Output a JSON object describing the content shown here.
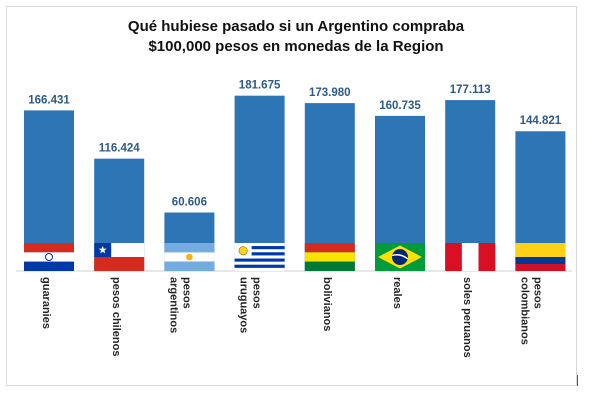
{
  "chart_data": {
    "type": "bar",
    "title_lines": [
      "Qué hubiese pasado si un Argentino compraba",
      "$100,000 pesos en monedas de la Region"
    ],
    "categories": [
      "guaranies",
      "pesos chilenos",
      "pesos argentinos",
      "pesos uruguayos",
      "bolivianos",
      "reales",
      "soles peruanos",
      "pesos colombianos"
    ],
    "category_label_lines": [
      [
        "guaranies"
      ],
      [
        "pesos chilenos"
      ],
      [
        "pesos",
        "argentinos"
      ],
      [
        "pesos",
        "uruguayos"
      ],
      [
        "bolivianos"
      ],
      [
        "reales"
      ],
      [
        "soles peruanos"
      ],
      [
        "pesos",
        "colombianos"
      ]
    ],
    "values": [
      166431,
      116424,
      60606,
      181675,
      173980,
      160735,
      177113,
      144821
    ],
    "value_labels": [
      "166.431",
      "116.424",
      "60.606",
      "181.675",
      "173.980",
      "160.735",
      "177.113",
      "144.821"
    ],
    "flags": [
      "paraguay",
      "chile",
      "argentina",
      "uruguay",
      "bolivia",
      "brazil",
      "peru",
      "colombia"
    ],
    "ylim": [
      0,
      200000
    ],
    "bar_color": "#2e75b6",
    "grid": false,
    "legend": "none"
  }
}
